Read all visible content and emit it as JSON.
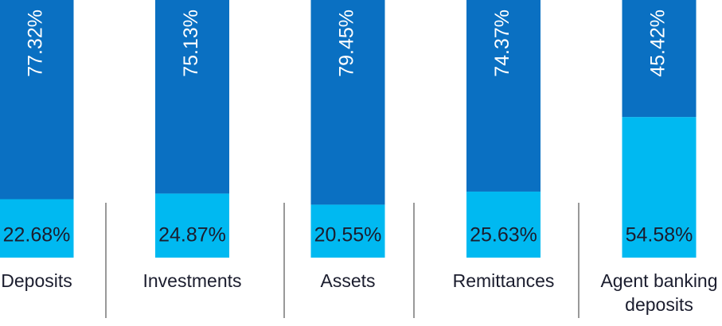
{
  "chart_data": {
    "type": "stacked-bar",
    "categories": [
      "Deposits",
      "Investments",
      "Assets",
      "Remittances",
      "Agent banking deposits"
    ],
    "series": [
      {
        "color": "#00b9f1",
        "values": [
          22.68,
          24.87,
          20.55,
          25.63,
          54.58
        ],
        "value_labels": [
          "22.68%",
          "24.87%",
          "20.55%",
          "25.63%",
          "54.58%"
        ]
      },
      {
        "color": "#0a70c2",
        "values": [
          77.32,
          75.13,
          79.45,
          74.37,
          45.42
        ],
        "value_labels": [
          "77.32%",
          "75.13%",
          "79.45%",
          "74.37%",
          "45.42%"
        ]
      }
    ],
    "ylim": [
      0,
      100
    ]
  }
}
